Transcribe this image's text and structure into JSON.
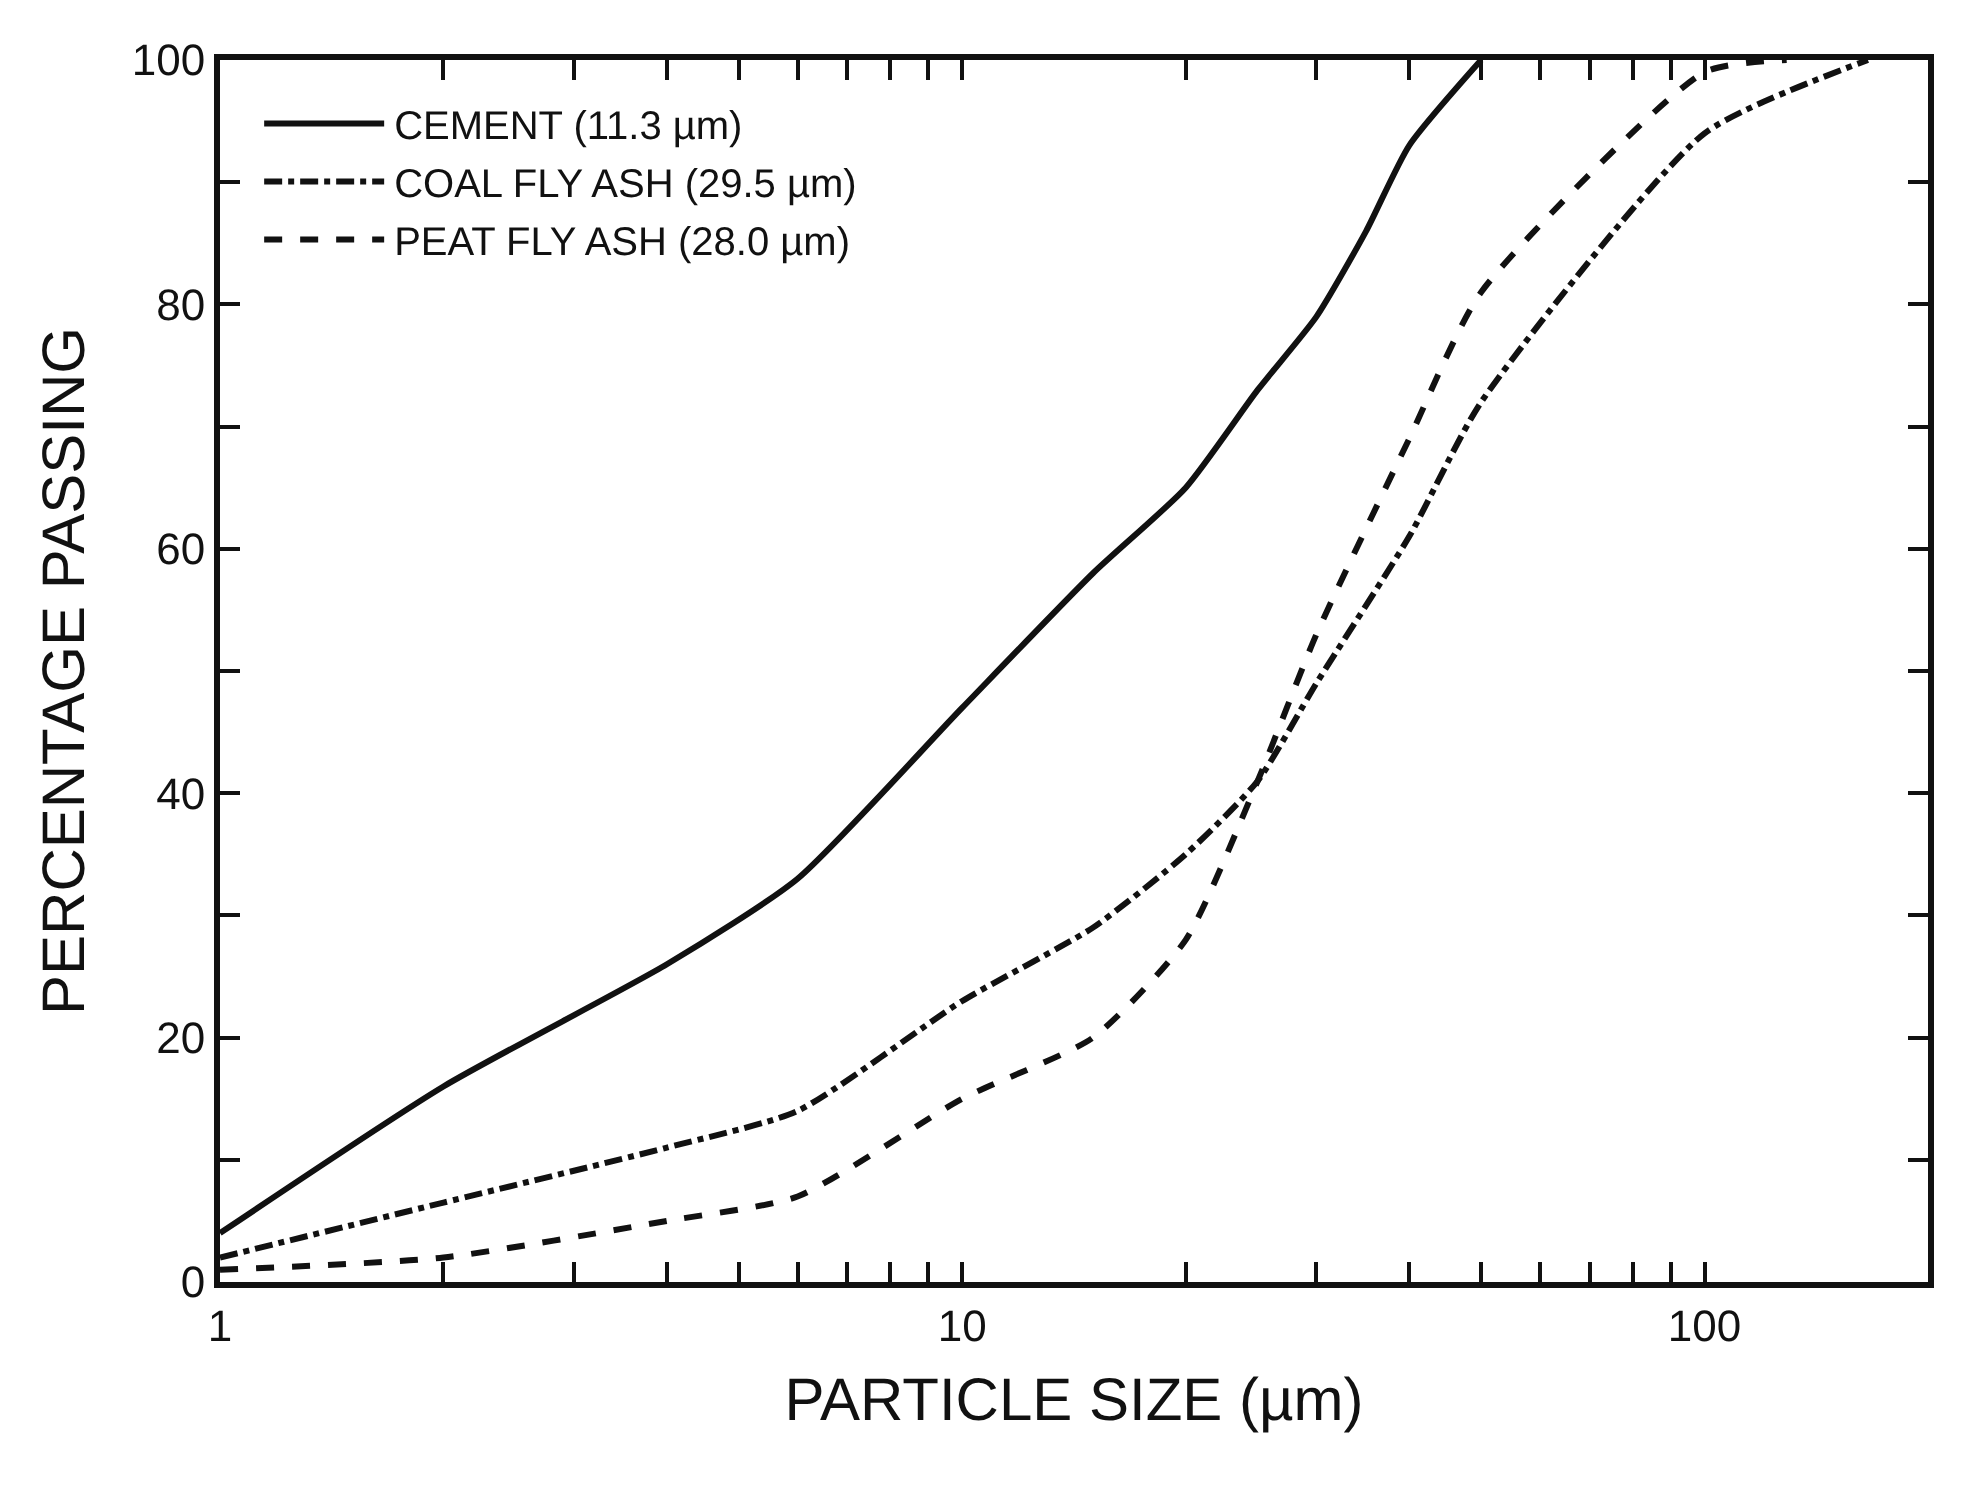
{
  "chart_data": {
    "type": "line",
    "xlabel": "PARTICLE SIZE (µm)",
    "ylabel": "PERCENTAGE PASSING",
    "log": "x",
    "xlim": [
      1,
      200
    ],
    "ylim": [
      0,
      100
    ],
    "xticks": [
      1,
      {
        "value": 2,
        "label": null
      },
      {
        "value": 3,
        "label": null
      },
      {
        "value": 4,
        "label": null
      },
      {
        "value": 5,
        "label": null
      },
      {
        "value": 6,
        "label": null
      },
      {
        "value": 7,
        "label": null
      },
      {
        "value": 8,
        "label": null
      },
      {
        "value": 9,
        "label": null
      },
      10,
      {
        "value": 20,
        "label": null
      },
      {
        "value": 30,
        "label": null
      },
      {
        "value": 40,
        "label": null
      },
      {
        "value": 50,
        "label": null
      },
      {
        "value": 60,
        "label": null
      },
      {
        "value": 70,
        "label": null
      },
      {
        "value": 80,
        "label": null
      },
      {
        "value": 90,
        "label": null
      },
      100
    ],
    "yticks": [
      0,
      {
        "value": 10,
        "label": null
      },
      20,
      {
        "value": 30,
        "label": null
      },
      40,
      {
        "value": 50,
        "label": null
      },
      60,
      {
        "value": 70,
        "label": null
      },
      80,
      {
        "value": 90,
        "label": null
      },
      100
    ],
    "legend": "top left",
    "series": [
      {
        "name": "CEMENT (11.3 µm)",
        "color": "#111111",
        "line_style": "solid",
        "x": [
          1,
          2,
          4,
          6,
          10,
          15,
          20,
          25,
          30,
          35,
          40,
          50
        ],
        "values": [
          4,
          16,
          26,
          33,
          47,
          58,
          65,
          73,
          79,
          86,
          93,
          100
        ]
      },
      {
        "name": "COAL FLY ASH (29.5 µm)",
        "color": "#111111",
        "line_style": "dashdot",
        "x": [
          1,
          2,
          4,
          6,
          10,
          15,
          20,
          25,
          30,
          40,
          50,
          100,
          166
        ],
        "values": [
          2,
          6.5,
          11,
          14,
          23,
          29,
          35,
          41,
          49,
          61,
          72,
          94,
          100
        ]
      },
      {
        "name": "PEAT FLY ASH (28.0 µm)",
        "color": "#111111",
        "line_style": "dashed",
        "x": [
          1,
          2,
          4,
          6,
          10,
          15,
          20,
          25,
          30,
          40,
          50,
          100,
          129
        ],
        "values": [
          1,
          2,
          5,
          7,
          15,
          20,
          28,
          41,
          53,
          69,
          81,
          99,
          100
        ]
      }
    ]
  }
}
